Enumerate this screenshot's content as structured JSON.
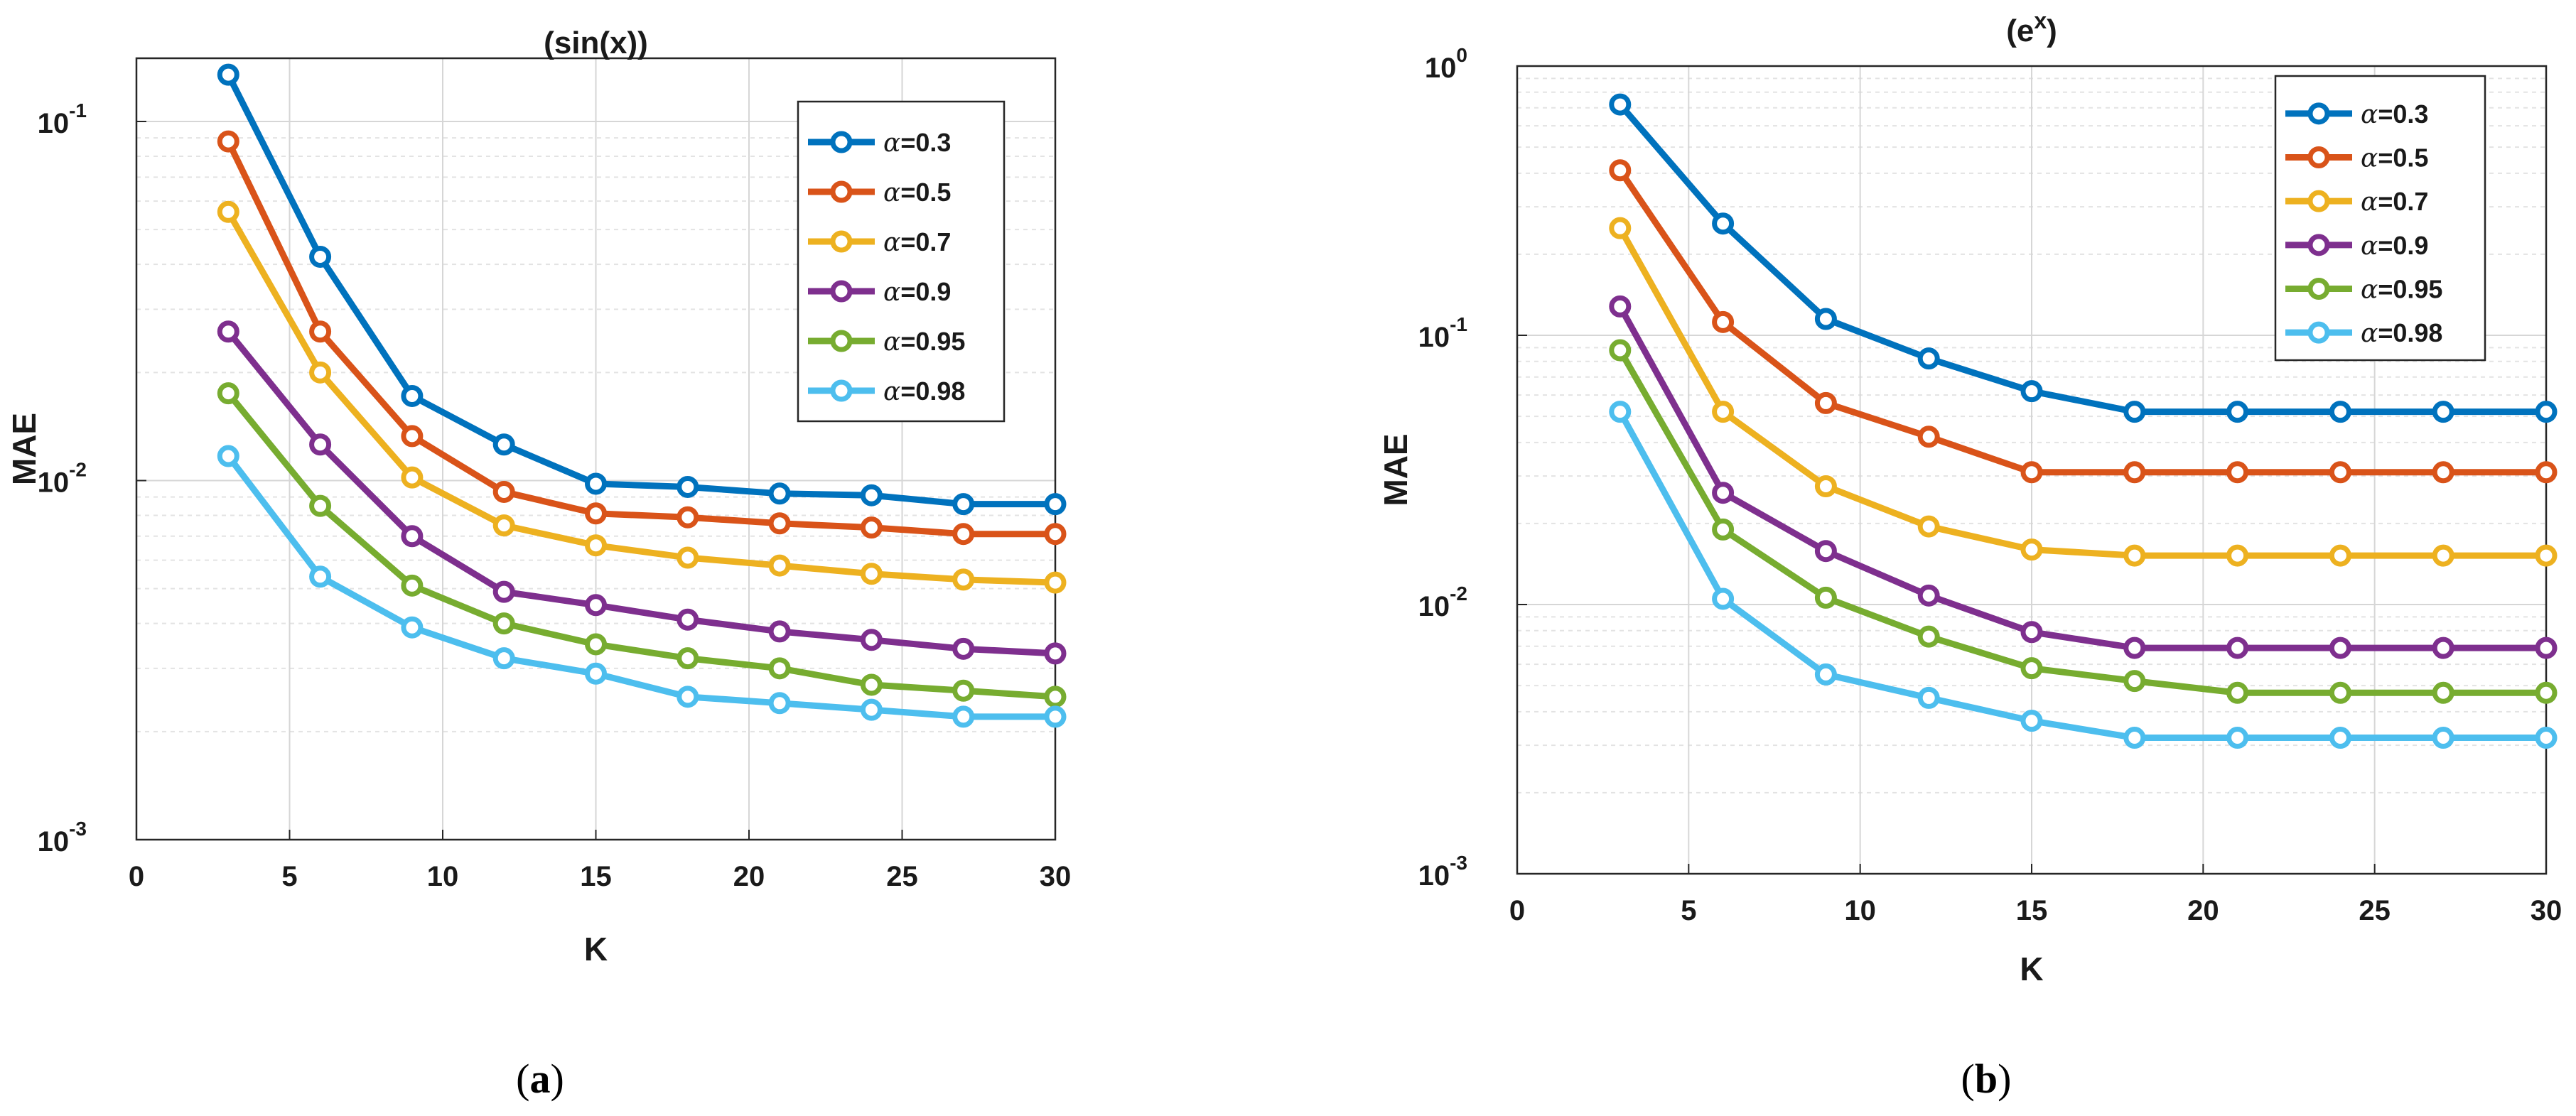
{
  "chart_data": [
    {
      "type": "line",
      "title_parts": [
        "(sin(x))"
      ],
      "xlabel": "K",
      "ylabel": "MAE",
      "xlim": [
        0,
        30
      ],
      "ylim": [
        0.001,
        0.15
      ],
      "yscale": "log",
      "grid": true,
      "legend": "top-right",
      "caption": {
        "open": "(",
        "letter": "a",
        "close": ")"
      },
      "x_ticks": [
        "0",
        "5",
        "10",
        "15",
        "20",
        "25",
        "30"
      ],
      "y_ticks": [
        {
          "base": "10",
          "exp": "-1"
        },
        {
          "base": "10",
          "exp": "-2"
        },
        {
          "base": "10",
          "exp": "-3"
        }
      ],
      "x": [
        3,
        6,
        9,
        12,
        15,
        18,
        21,
        24,
        27,
        30
      ],
      "series": [
        {
          "name": "α=0.3",
          "symbol": "α",
          "label": "=0.3",
          "color": "#0072BD",
          "values": [
            0.135,
            0.042,
            0.0172,
            0.0126,
            0.0098,
            0.0096,
            0.0092,
            0.0091,
            0.0086,
            0.0086
          ]
        },
        {
          "name": "α=0.5",
          "symbol": "α",
          "label": "=0.5",
          "color": "#D95319",
          "values": [
            0.088,
            0.026,
            0.0133,
            0.0093,
            0.0081,
            0.0079,
            0.0076,
            0.0074,
            0.0071,
            0.0071
          ]
        },
        {
          "name": "α=0.7",
          "symbol": "α",
          "label": "=0.7",
          "color": "#EDB120",
          "values": [
            0.056,
            0.02,
            0.0102,
            0.0075,
            0.0066,
            0.0061,
            0.0058,
            0.0055,
            0.0053,
            0.0052
          ]
        },
        {
          "name": "α=0.9",
          "symbol": "α",
          "label": "=0.9",
          "color": "#7E2F8E",
          "values": [
            0.026,
            0.0126,
            0.007,
            0.0049,
            0.0045,
            0.0041,
            0.0038,
            0.0036,
            0.0034,
            0.0033
          ]
        },
        {
          "name": "α=0.95",
          "symbol": "α",
          "label": "=0.95",
          "color": "#77AC30",
          "values": [
            0.0175,
            0.0085,
            0.0051,
            0.004,
            0.0035,
            0.0032,
            0.003,
            0.0027,
            0.0026,
            0.0025
          ]
        },
        {
          "name": "α=0.98",
          "symbol": "α",
          "label": "=0.98",
          "color": "#4DBEEE",
          "values": [
            0.0117,
            0.0054,
            0.0039,
            0.0032,
            0.0029,
            0.0025,
            0.0024,
            0.0023,
            0.0022,
            0.0022
          ]
        }
      ]
    },
    {
      "type": "line",
      "title_parts": [
        "(e",
        "x",
        ")"
      ],
      "xlabel": "K",
      "ylabel": "MAE",
      "xlim": [
        0,
        30
      ],
      "ylim": [
        0.001,
        1
      ],
      "yscale": "log",
      "grid": true,
      "legend": "top-right",
      "caption": {
        "open": "(",
        "letter": "b",
        "close": ")"
      },
      "x_ticks": [
        "0",
        "5",
        "10",
        "15",
        "20",
        "25",
        "30"
      ],
      "y_ticks": [
        {
          "base": "10",
          "exp": "0"
        },
        {
          "base": "10",
          "exp": "-1"
        },
        {
          "base": "10",
          "exp": "-2"
        },
        {
          "base": "10",
          "exp": "-3"
        }
      ],
      "x": [
        3,
        6,
        9,
        12,
        15,
        18,
        21,
        24,
        27,
        30
      ],
      "series": [
        {
          "name": "α=0.3",
          "symbol": "α",
          "label": "=0.3",
          "color": "#0072BD",
          "values": [
            0.72,
            0.26,
            0.115,
            0.082,
            0.062,
            0.052,
            0.052,
            0.052,
            0.052,
            0.052
          ]
        },
        {
          "name": "α=0.5",
          "symbol": "α",
          "label": "=0.5",
          "color": "#D95319",
          "values": [
            0.41,
            0.112,
            0.056,
            0.042,
            0.031,
            0.031,
            0.031,
            0.031,
            0.031,
            0.031
          ]
        },
        {
          "name": "α=0.7",
          "symbol": "α",
          "label": "=0.7",
          "color": "#EDB120",
          "values": [
            0.25,
            0.052,
            0.0275,
            0.0195,
            0.016,
            0.0152,
            0.0152,
            0.0152,
            0.0152,
            0.0152
          ]
        },
        {
          "name": "α=0.9",
          "symbol": "α",
          "label": "=0.9",
          "color": "#7E2F8E",
          "values": [
            0.128,
            0.026,
            0.0158,
            0.0108,
            0.0079,
            0.0069,
            0.0069,
            0.0069,
            0.0069,
            0.0069
          ]
        },
        {
          "name": "α=0.95",
          "symbol": "α",
          "label": "=0.95",
          "color": "#77AC30",
          "values": [
            0.088,
            0.019,
            0.0106,
            0.0076,
            0.0058,
            0.0052,
            0.0047,
            0.0047,
            0.0047,
            0.0047
          ]
        },
        {
          "name": "α=0.98",
          "symbol": "α",
          "label": "=0.98",
          "color": "#4DBEEE",
          "values": [
            0.052,
            0.0105,
            0.0055,
            0.0045,
            0.0037,
            0.0032,
            0.0032,
            0.0032,
            0.0032,
            0.0032
          ]
        }
      ]
    }
  ]
}
